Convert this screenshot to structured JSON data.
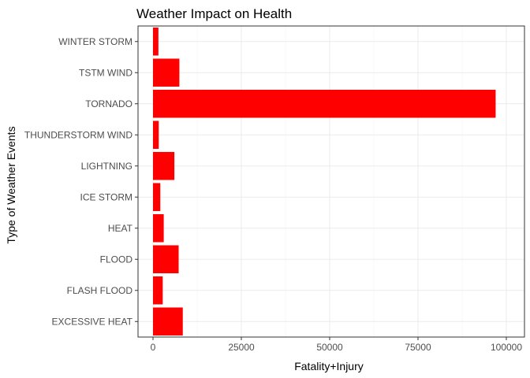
{
  "chart_data": {
    "type": "bar",
    "orientation": "horizontal",
    "title": "Weather Impact on Health",
    "xlabel": "Fatality+Injury",
    "ylabel": "Type of Weather Events",
    "categories": [
      "EXCESSIVE HEAT",
      "FLASH FLOOD",
      "FLOOD",
      "HEAT",
      "ICE STORM",
      "LIGHTNING",
      "THUNDERSTORM WIND",
      "TORNADO",
      "TSTM WIND",
      "WINTER STORM"
    ],
    "values": [
      8428,
      2755,
      7259,
      3037,
      2064,
      6046,
      1621,
      96979,
      7461,
      1527
    ],
    "xlim": [
      0,
      100000
    ],
    "xticks": [
      0,
      25000,
      50000,
      75000,
      100000
    ],
    "xtick_labels": [
      "0",
      "25000",
      "50000",
      "75000",
      "100000"
    ],
    "bar_color": "#ff0000",
    "grid": true,
    "legend": "none"
  }
}
